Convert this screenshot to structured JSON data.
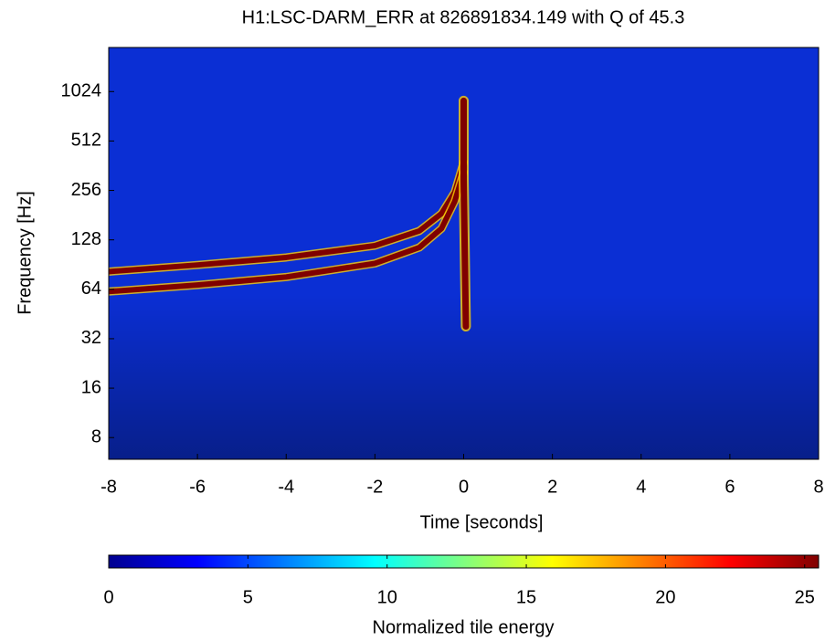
{
  "chart_data": {
    "type": "spectrogram",
    "title": "H1:LSC-DARM_ERR at 826891834.149 with Q of 45.3",
    "x_label": "Time [seconds]",
    "y_label": "Frequency [Hz]",
    "xlim": [
      -8,
      8
    ],
    "xticks": [
      -8,
      -6,
      -4,
      -2,
      0,
      2,
      4,
      6,
      8
    ],
    "ylim": [
      5.9,
      1900
    ],
    "yticks": [
      8,
      16,
      32,
      64,
      128,
      256,
      512,
      1024
    ],
    "log_y": true,
    "background_color": "#0b2fd4",
    "series": [
      {
        "color": "#800000",
        "x": [
          -8,
          -6,
          -4,
          -2,
          -1,
          -0.5,
          -0.2,
          0
        ],
        "values": [
          82,
          90,
          100,
          118,
          145,
          185,
          250,
          380
        ]
      },
      {
        "color": "#800000",
        "x": [
          -8,
          -6,
          -4,
          -2,
          -1,
          -0.5,
          -0.2,
          0
        ],
        "values": [
          62,
          68,
          76,
          92,
          115,
          150,
          220,
          330
        ]
      },
      {
        "color": "#800000",
        "x": [
          0.05,
          0,
          0
        ],
        "values": [
          38,
          300,
          900
        ]
      }
    ],
    "colorbar": {
      "label": "Normalized tile energy",
      "clim": [
        0,
        25.5
      ],
      "ticks": [
        0,
        5,
        10,
        15,
        20,
        25
      ],
      "colorscale": [
        "#00008f",
        "#0000ff",
        "#0080ff",
        "#00ffff",
        "#80ff80",
        "#ffff00",
        "#ff8000",
        "#ff0000",
        "#800000"
      ]
    }
  }
}
